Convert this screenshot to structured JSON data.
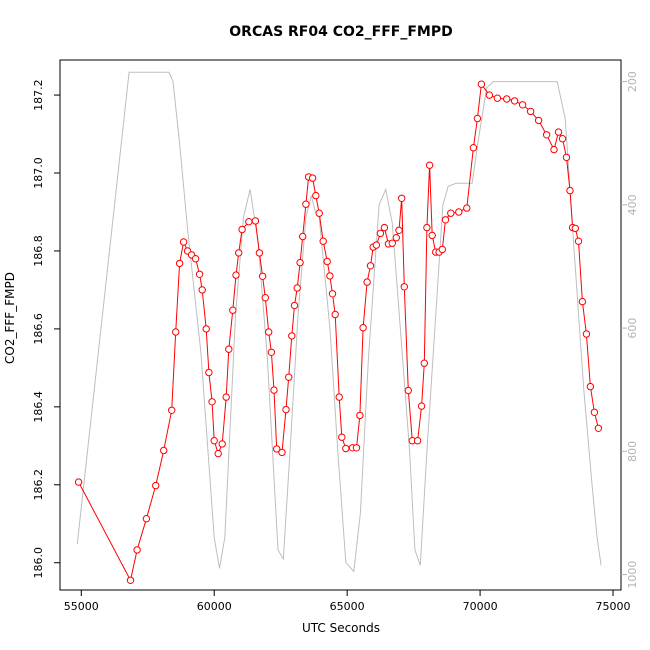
{
  "chart_data": {
    "type": "line",
    "title": "ORCAS RF04 CO2_FFF_FMPD",
    "xlabel": "UTC Seconds",
    "ylabel": "CO2_FFF_FMPD",
    "xlim": [
      54200,
      75300
    ],
    "ylim": [
      185.93,
      187.29
    ],
    "y2lim": [
      1025,
      165
    ],
    "x_ticks": [
      55000,
      60000,
      65000,
      70000,
      75000
    ],
    "x_tick_labels": [
      "55000",
      "60000",
      "65000",
      "70000",
      "75000"
    ],
    "y_ticks": [
      186.0,
      186.2,
      186.4,
      186.6,
      186.8,
      187.0,
      187.2
    ],
    "y_tick_labels": [
      "186.0",
      "186.2",
      "186.4",
      "186.6",
      "186.8",
      "187.0",
      "187.2"
    ],
    "y2_ticks": [
      200,
      400,
      600,
      800,
      1000
    ],
    "y2_tick_labels": [
      "200",
      "400",
      "600",
      "800",
      "1000"
    ],
    "colors": {
      "co2": "#ff0000",
      "pressure": "#bebebe",
      "axes": "#000000",
      "right_axis": "#b3b3b3"
    },
    "series": [
      {
        "values": [
          [
            54900,
            186.207
          ],
          [
            56850,
            185.955
          ],
          [
            57100,
            186.033
          ],
          [
            57450,
            186.113
          ],
          [
            57800,
            186.198
          ],
          [
            58100,
            186.288
          ],
          [
            58400,
            186.391
          ],
          [
            58550,
            186.592
          ],
          [
            58700,
            186.768
          ],
          [
            58850,
            186.823
          ],
          [
            59000,
            186.8
          ],
          [
            59150,
            186.79
          ],
          [
            59300,
            186.78
          ],
          [
            59450,
            186.74
          ],
          [
            59550,
            186.7
          ],
          [
            59700,
            186.6
          ],
          [
            59800,
            186.488
          ],
          [
            59920,
            186.413
          ],
          [
            60000,
            186.313
          ],
          [
            60150,
            186.28
          ],
          [
            60300,
            186.305
          ],
          [
            60450,
            186.425
          ],
          [
            60550,
            186.548
          ],
          [
            60700,
            186.648
          ],
          [
            60820,
            186.738
          ],
          [
            60920,
            186.795
          ],
          [
            61050,
            186.855
          ],
          [
            61300,
            186.875
          ],
          [
            61550,
            186.877
          ],
          [
            61700,
            186.795
          ],
          [
            61820,
            186.735
          ],
          [
            61920,
            186.68
          ],
          [
            62050,
            186.592
          ],
          [
            62150,
            186.54
          ],
          [
            62250,
            186.443
          ],
          [
            62350,
            186.292
          ],
          [
            62550,
            186.283
          ],
          [
            62700,
            186.393
          ],
          [
            62800,
            186.476
          ],
          [
            62920,
            186.582
          ],
          [
            63020,
            186.66
          ],
          [
            63120,
            186.705
          ],
          [
            63230,
            186.77
          ],
          [
            63330,
            186.837
          ],
          [
            63450,
            186.92
          ],
          [
            63550,
            186.99
          ],
          [
            63700,
            186.987
          ],
          [
            63820,
            186.942
          ],
          [
            63950,
            186.897
          ],
          [
            64100,
            186.825
          ],
          [
            64250,
            186.773
          ],
          [
            64350,
            186.736
          ],
          [
            64450,
            186.69
          ],
          [
            64550,
            186.637
          ],
          [
            64700,
            186.425
          ],
          [
            64800,
            186.322
          ],
          [
            64950,
            186.293
          ],
          [
            65200,
            186.295
          ],
          [
            65350,
            186.295
          ],
          [
            65480,
            186.378
          ],
          [
            65600,
            186.603
          ],
          [
            65750,
            186.72
          ],
          [
            65880,
            186.762
          ],
          [
            65980,
            186.81
          ],
          [
            66100,
            186.815
          ],
          [
            66250,
            186.845
          ],
          [
            66400,
            186.86
          ],
          [
            66550,
            186.818
          ],
          [
            66700,
            186.82
          ],
          [
            66850,
            186.834
          ],
          [
            66950,
            186.853
          ],
          [
            67050,
            186.935
          ],
          [
            67150,
            186.708
          ],
          [
            67300,
            186.442
          ],
          [
            67450,
            186.313
          ],
          [
            67650,
            186.313
          ],
          [
            67800,
            186.402
          ],
          [
            67900,
            186.512
          ],
          [
            68000,
            186.86
          ],
          [
            68100,
            187.02
          ],
          [
            68200,
            186.84
          ],
          [
            68330,
            186.797
          ],
          [
            68460,
            186.797
          ],
          [
            68580,
            186.804
          ],
          [
            68700,
            186.88
          ],
          [
            68900,
            186.897
          ],
          [
            69200,
            186.9
          ],
          [
            69500,
            186.91
          ],
          [
            69750,
            187.065
          ],
          [
            69900,
            187.14
          ],
          [
            70050,
            187.228
          ],
          [
            70350,
            187.2
          ],
          [
            70650,
            187.192
          ],
          [
            71000,
            187.19
          ],
          [
            71300,
            187.185
          ],
          [
            71600,
            187.175
          ],
          [
            71900,
            187.158
          ],
          [
            72200,
            187.135
          ],
          [
            72500,
            187.098
          ],
          [
            72780,
            187.06
          ],
          [
            72950,
            187.105
          ],
          [
            73100,
            187.088
          ],
          [
            73250,
            187.04
          ],
          [
            73380,
            186.955
          ],
          [
            73480,
            186.86
          ],
          [
            73580,
            186.858
          ],
          [
            73700,
            186.825
          ],
          [
            73850,
            186.67
          ],
          [
            74000,
            186.587
          ],
          [
            74150,
            186.452
          ],
          [
            74300,
            186.386
          ],
          [
            74450,
            186.345
          ]
        ]
      },
      {
        "axis": "right",
        "values": [
          [
            54850,
            950
          ],
          [
            56800,
            185
          ],
          [
            58300,
            185
          ],
          [
            58450,
            200
          ],
          [
            58700,
            300
          ],
          [
            59000,
            440
          ],
          [
            59500,
            640
          ],
          [
            60000,
            940
          ],
          [
            60200,
            990
          ],
          [
            60400,
            940
          ],
          [
            60800,
            580
          ],
          [
            61100,
            420
          ],
          [
            61350,
            375
          ],
          [
            61650,
            460
          ],
          [
            62000,
            650
          ],
          [
            62400,
            960
          ],
          [
            62600,
            975
          ],
          [
            62850,
            800
          ],
          [
            63150,
            580
          ],
          [
            63450,
            420
          ],
          [
            63650,
            385
          ],
          [
            63800,
            410
          ],
          [
            63950,
            420
          ],
          [
            64350,
            600
          ],
          [
            64650,
            800
          ],
          [
            64950,
            980
          ],
          [
            65250,
            995
          ],
          [
            65500,
            900
          ],
          [
            65800,
            650
          ],
          [
            66200,
            400
          ],
          [
            66450,
            375
          ],
          [
            66700,
            430
          ],
          [
            67000,
            600
          ],
          [
            67350,
            800
          ],
          [
            67550,
            960
          ],
          [
            67750,
            985
          ],
          [
            68000,
            800
          ],
          [
            68300,
            600
          ],
          [
            68600,
            400
          ],
          [
            68800,
            370
          ],
          [
            69100,
            365
          ],
          [
            69700,
            365
          ],
          [
            69950,
            290
          ],
          [
            70250,
            210
          ],
          [
            70500,
            200
          ],
          [
            72900,
            200
          ],
          [
            73200,
            260
          ],
          [
            73500,
            450
          ],
          [
            73900,
            700
          ],
          [
            74200,
            850
          ],
          [
            74400,
            940
          ],
          [
            74550,
            985
          ]
        ]
      }
    ]
  }
}
